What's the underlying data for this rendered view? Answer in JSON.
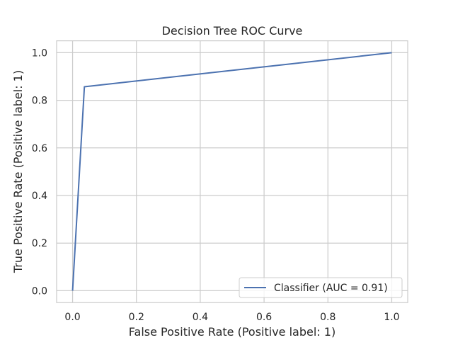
{
  "chart_data": {
    "type": "line",
    "title": "Decision Tree ROC Curve",
    "xlabel": "False Positive Rate (Positive label: 1)",
    "ylabel": "True Positive Rate (Positive label: 1)",
    "xlim": [
      -0.05,
      1.05
    ],
    "ylim": [
      -0.05,
      1.05
    ],
    "xticks": [
      0.0,
      0.2,
      0.4,
      0.6,
      0.8,
      1.0
    ],
    "yticks": [
      0.0,
      0.2,
      0.4,
      0.6,
      0.8,
      1.0
    ],
    "xtick_labels": [
      "0.0",
      "0.2",
      "0.4",
      "0.6",
      "0.8",
      "1.0"
    ],
    "ytick_labels": [
      "0.0",
      "0.2",
      "0.4",
      "0.6",
      "0.8",
      "1.0"
    ],
    "grid": true,
    "legend_position": "lower-right",
    "series": [
      {
        "name": "Classifier (AUC = 0.91)",
        "color": "#4c72b0",
        "x": [
          0.0,
          0.037,
          1.0
        ],
        "y": [
          0.0,
          0.857,
          1.0
        ]
      }
    ]
  }
}
